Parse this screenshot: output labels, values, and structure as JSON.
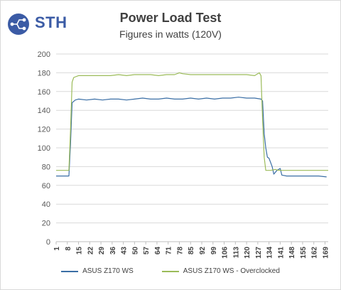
{
  "brand": {
    "logo_text": "STH",
    "colors": {
      "circle": "#3b5ba5",
      "text": "#3b5ba5"
    }
  },
  "chart_data": {
    "type": "line",
    "title": "Power Load Test",
    "subtitle": "Figures in watts (120V)",
    "xlabel": "",
    "ylabel": "",
    "ylim": [
      0,
      200
    ],
    "yticks": [
      0,
      20,
      40,
      60,
      80,
      100,
      120,
      140,
      160,
      180,
      200
    ],
    "xlim": [
      1,
      171
    ],
    "xticks": [
      1,
      8,
      15,
      22,
      29,
      36,
      43,
      50,
      57,
      64,
      71,
      78,
      85,
      92,
      99,
      106,
      113,
      120,
      127,
      134,
      141,
      148,
      155,
      162,
      169
    ],
    "grid": true,
    "legend_position": "bottom",
    "series": [
      {
        "name": "ASUS Z170 WS",
        "color": "#3a6ea5",
        "points": [
          [
            1,
            70
          ],
          [
            9,
            70
          ],
          [
            10,
            105
          ],
          [
            11,
            148
          ],
          [
            13,
            151
          ],
          [
            15,
            152
          ],
          [
            20,
            151
          ],
          [
            25,
            152
          ],
          [
            30,
            151
          ],
          [
            35,
            152
          ],
          [
            40,
            152
          ],
          [
            45,
            151
          ],
          [
            50,
            152
          ],
          [
            55,
            153
          ],
          [
            60,
            152
          ],
          [
            65,
            152
          ],
          [
            70,
            153
          ],
          [
            75,
            152
          ],
          [
            80,
            152
          ],
          [
            85,
            153
          ],
          [
            90,
            152
          ],
          [
            95,
            153
          ],
          [
            100,
            152
          ],
          [
            105,
            153
          ],
          [
            110,
            153
          ],
          [
            115,
            154
          ],
          [
            120,
            153
          ],
          [
            125,
            153
          ],
          [
            129,
            152
          ],
          [
            130,
            150
          ],
          [
            131,
            115
          ],
          [
            132,
            100
          ],
          [
            133,
            90
          ],
          [
            134,
            89
          ],
          [
            136,
            80
          ],
          [
            137,
            72
          ],
          [
            139,
            76
          ],
          [
            141,
            78
          ],
          [
            142,
            71
          ],
          [
            145,
            70
          ],
          [
            150,
            70
          ],
          [
            155,
            70
          ],
          [
            160,
            70
          ],
          [
            165,
            70
          ],
          [
            170,
            69
          ]
        ]
      },
      {
        "name": "ASUS Z170 WS - Overclocked",
        "color": "#9bbb59",
        "points": [
          [
            1,
            76
          ],
          [
            9,
            76
          ],
          [
            10,
            120
          ],
          [
            11,
            170
          ],
          [
            12,
            175
          ],
          [
            15,
            177
          ],
          [
            20,
            177
          ],
          [
            25,
            177
          ],
          [
            30,
            177
          ],
          [
            35,
            177
          ],
          [
            40,
            178
          ],
          [
            45,
            177
          ],
          [
            50,
            178
          ],
          [
            55,
            178
          ],
          [
            60,
            178
          ],
          [
            65,
            177
          ],
          [
            70,
            178
          ],
          [
            75,
            178
          ],
          [
            78,
            180
          ],
          [
            80,
            179
          ],
          [
            85,
            178
          ],
          [
            90,
            178
          ],
          [
            95,
            178
          ],
          [
            100,
            178
          ],
          [
            105,
            178
          ],
          [
            110,
            178
          ],
          [
            115,
            178
          ],
          [
            120,
            178
          ],
          [
            125,
            177
          ],
          [
            128,
            180
          ],
          [
            129,
            177
          ],
          [
            130,
            130
          ],
          [
            131,
            90
          ],
          [
            132,
            76
          ],
          [
            135,
            76
          ],
          [
            138,
            77
          ],
          [
            140,
            76
          ],
          [
            145,
            76
          ],
          [
            150,
            76
          ],
          [
            155,
            76
          ],
          [
            160,
            76
          ],
          [
            165,
            76
          ],
          [
            171,
            76
          ]
        ]
      }
    ]
  }
}
